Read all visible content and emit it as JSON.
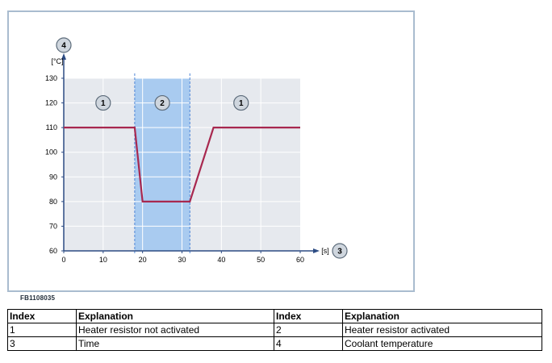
{
  "chart_data": {
    "type": "line",
    "figure_code": "FB1108035",
    "y_unit": "[°C]",
    "x_unit": "[s]",
    "xlim": [
      0,
      60
    ],
    "ylim": [
      60,
      130
    ],
    "x_ticks": [
      "0",
      "10",
      "20",
      "30",
      "40",
      "50",
      "60"
    ],
    "y_ticks": [
      "60",
      "70",
      "80",
      "90",
      "100",
      "110",
      "120",
      "130"
    ],
    "grid": true,
    "series": [
      {
        "x": [
          0,
          18,
          20,
          32,
          38,
          60
        ],
        "y": [
          110,
          110,
          80,
          80,
          110,
          110
        ]
      }
    ],
    "shaded_region": {
      "x_start": 18,
      "x_end": 32,
      "label": "2"
    },
    "callouts": [
      {
        "label": "1",
        "x": 10,
        "y": 120
      },
      {
        "label": "2",
        "x": 25,
        "y": 120
      },
      {
        "label": "1",
        "x": 45,
        "y": 120
      }
    ],
    "axis_callouts": {
      "y_axis": "4",
      "x_axis": "3"
    },
    "colors": {
      "plot_bg": "#e6e9ee",
      "shade": "#a9cbf0",
      "line": "#a8284f",
      "grid": "#ffffff",
      "axis": "#2d4c84",
      "callout_fill": "#cfd6de"
    }
  },
  "legend": {
    "headers": [
      "Index",
      "Explanation",
      "Index",
      "Explanation"
    ],
    "rows": [
      [
        "1",
        "Heater resistor not activated",
        "2",
        "Heater resistor activated"
      ],
      [
        "3",
        "Time",
        "4",
        "Coolant temperature"
      ]
    ]
  }
}
